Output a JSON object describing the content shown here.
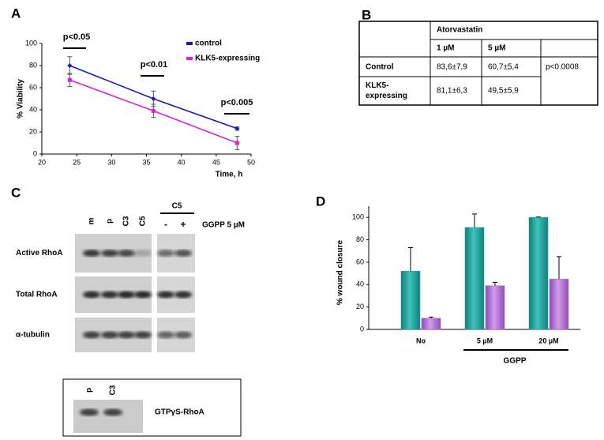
{
  "panel_labels": [
    "A",
    "B",
    "C",
    "D"
  ],
  "chart_data": [
    {
      "type": "line",
      "xlabel": "Time, h",
      "ylabel": "% Viability",
      "x": [
        24,
        36,
        48
      ],
      "series": [
        {
          "name": "control",
          "color": "#1a1ab8",
          "values": [
            80,
            50,
            23
          ],
          "errors": [
            8,
            7,
            1.5
          ]
        },
        {
          "name": "KLK5-expressing",
          "color": "#e020d8",
          "values": [
            67,
            39,
            10
          ],
          "errors": [
            6,
            6,
            6
          ]
        }
      ],
      "xlim": [
        20,
        50
      ],
      "xticks": [
        20,
        25,
        30,
        35,
        40,
        45,
        50
      ],
      "ylim": [
        0,
        100
      ],
      "yticks": [
        0,
        20,
        40,
        60,
        80,
        100
      ],
      "annotations": [
        "p<0.05",
        "p<0.01",
        "p<0.005"
      ],
      "legend": "upper right"
    },
    {
      "type": "bar",
      "ylabel": "% wound closure",
      "categories": [
        "No",
        "5 µM",
        "20 µM"
      ],
      "group_label": "GGPP",
      "series": [
        {
          "color": "#26a8a0",
          "values": [
            52,
            91,
            100
          ],
          "errors": [
            21,
            12,
            0.3
          ]
        },
        {
          "color": "#b070d8",
          "values": [
            10,
            39,
            45
          ],
          "errors": [
            1,
            3,
            20
          ]
        }
      ],
      "ylim": [
        0,
        110
      ],
      "yticks": [
        0,
        20,
        40,
        60,
        80,
        100
      ]
    }
  ],
  "table": {
    "group_header": "Atorvastatin",
    "columns": [
      "1 µM",
      "5 µM"
    ],
    "rows": [
      {
        "label": "Control",
        "cells": [
          "83,6±7,9",
          "60,7±5,4"
        ]
      },
      {
        "label": "KLK5-expressing",
        "cells": [
          "81,1±6,3",
          "49,5±5,9"
        ]
      }
    ],
    "p_value": "p<0.0008"
  },
  "blot": {
    "lanes": [
      "m",
      "p",
      "C3",
      "C5"
    ],
    "treated_clone": "C5",
    "treatment_lanes": [
      "-",
      "+"
    ],
    "treatment": "GGPP 5 µM",
    "rows": [
      "Active RhoA",
      "Total RhoA",
      "α-tubulin"
    ],
    "inset": {
      "lanes": [
        "p",
        "C3"
      ],
      "label": "GTPγS-RhoA"
    }
  }
}
